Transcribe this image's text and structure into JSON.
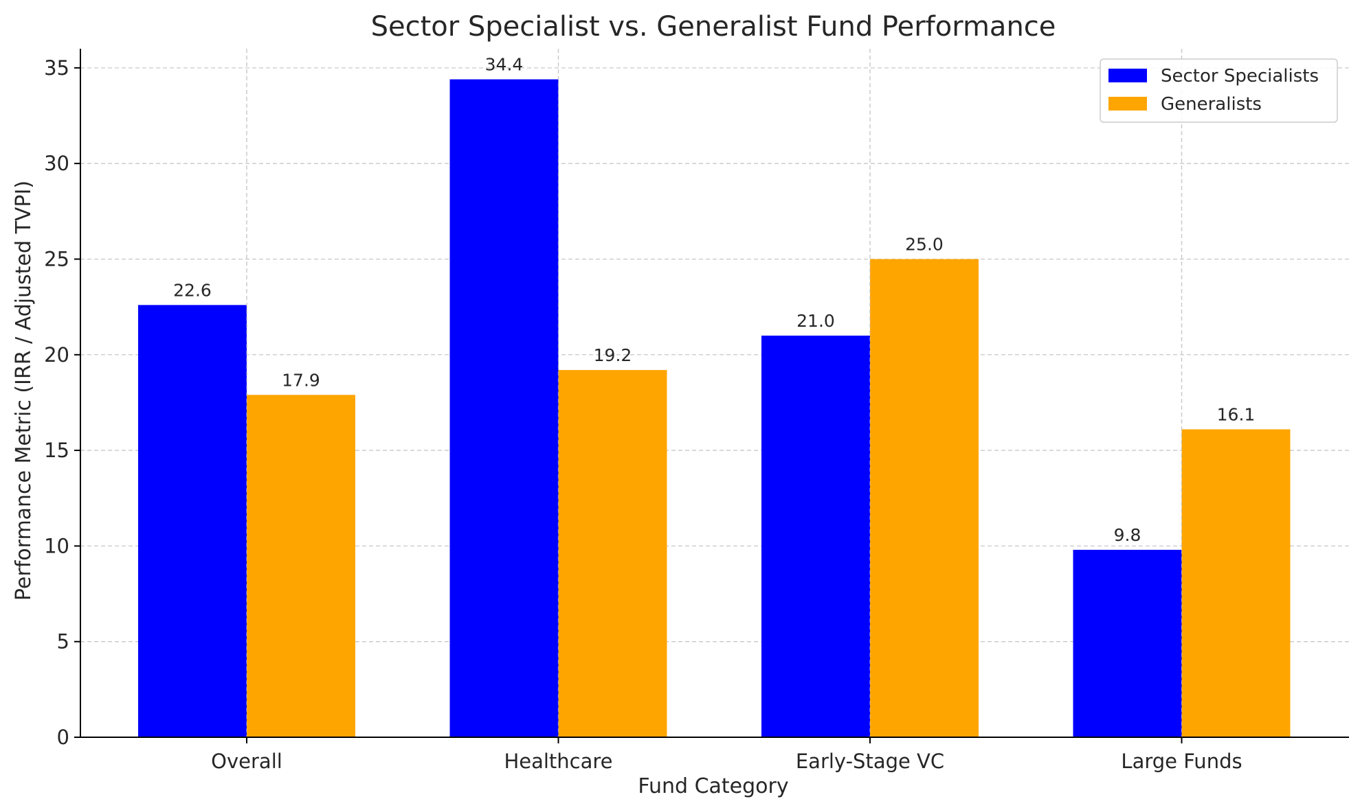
{
  "chart_data": {
    "type": "bar",
    "title": "Sector Specialist vs. Generalist Fund Performance",
    "xlabel": "Fund Category",
    "ylabel": "Performance Metric (IRR / Adjusted TVPI)",
    "categories": [
      "Overall",
      "Healthcare",
      "Early-Stage VC",
      "Large Funds"
    ],
    "series": [
      {
        "name": "Sector Specialists",
        "color": "#0000ff",
        "values": [
          22.6,
          34.4,
          21.0,
          9.8
        ]
      },
      {
        "name": "Generalists",
        "color": "#ffa500",
        "values": [
          17.9,
          19.2,
          25.0,
          16.1
        ]
      }
    ],
    "ylim": [
      0,
      36
    ],
    "yticks": [
      0,
      5,
      10,
      15,
      20,
      25,
      30,
      35
    ],
    "grid": true,
    "legend_position": "top-right",
    "value_labels": true
  }
}
